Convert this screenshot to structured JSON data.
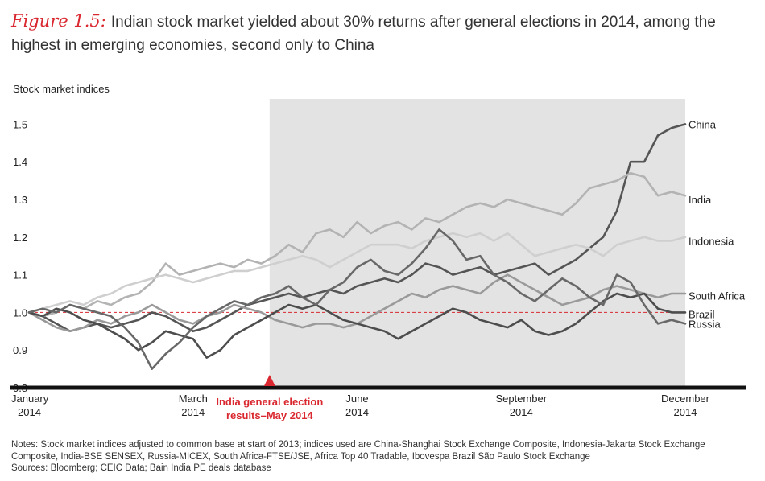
{
  "figure": {
    "label": "Figure 1.5:",
    "title": "Indian stock market yielded about 30% returns after general elections in 2014, among the highest in emerging economies, second only to China"
  },
  "notes": {
    "line1": "Notes: Stock market indices adjusted to common base at start of 2013; indices used are China-Shanghai Stock Exchange Composite, Indonesia-Jakarta Stock Exchange",
    "line2": "Composite, India-BSE SENSEX, Russia-MICEX, South Africa-FTSE/JSE, Africa Top 40 Tradable, Ibovespa Brazil São Paulo Stock Exchange",
    "line3": "Sources: Bloomberg; CEIC Data; Bain India PE deals database"
  },
  "colors": {
    "china": "#555555",
    "india": "#b3b3b3",
    "indonesia": "#cfcfcf",
    "south_africa": "#9a9a9a",
    "brazil": "#4d4d4d",
    "russia": "#686868",
    "shade": "#e3e3e3",
    "accent": "#d9282f",
    "axis": "#111111"
  },
  "chart_data": {
    "type": "line",
    "ylabel": "Stock market indices",
    "ylim": [
      0.8,
      1.55
    ],
    "yticks": [
      "0.8",
      "0.9",
      "1.0",
      "1.1",
      "1.2",
      "1.3",
      "1.4",
      "1.5"
    ],
    "xlim": [
      0,
      48
    ],
    "xticks": [
      {
        "pos": 0,
        "line1": "January",
        "line2": "2014"
      },
      {
        "pos": 12,
        "line1": "March",
        "line2": "2014"
      },
      {
        "pos": 24,
        "line1": "June",
        "line2": "2014"
      },
      {
        "pos": 36,
        "line1": "September",
        "line2": "2014"
      },
      {
        "pos": 48,
        "line1": "December",
        "line2": "2014"
      }
    ],
    "shaded_region": [
      17.6,
      48
    ],
    "baseline": 1.0,
    "annotation": {
      "pos": 17.6,
      "line1": "India general election",
      "line2": "results–May 2014"
    },
    "series": [
      {
        "name": "China",
        "key": "china",
        "width": 2.6,
        "values": [
          1.0,
          0.99,
          0.97,
          0.95,
          0.96,
          0.97,
          0.96,
          0.97,
          0.98,
          1.0,
          0.99,
          0.97,
          0.95,
          0.96,
          0.98,
          1.0,
          1.02,
          1.03,
          1.04,
          1.05,
          1.04,
          1.05,
          1.06,
          1.05,
          1.07,
          1.08,
          1.09,
          1.08,
          1.1,
          1.13,
          1.12,
          1.1,
          1.11,
          1.12,
          1.1,
          1.11,
          1.12,
          1.13,
          1.1,
          1.12,
          1.14,
          1.17,
          1.2,
          1.27,
          1.4,
          1.4,
          1.47,
          1.49,
          1.5
        ]
      },
      {
        "name": "India",
        "key": "india",
        "width": 2.6,
        "values": [
          1.0,
          0.99,
          1.0,
          1.02,
          1.01,
          1.03,
          1.02,
          1.04,
          1.05,
          1.08,
          1.13,
          1.1,
          1.11,
          1.12,
          1.13,
          1.12,
          1.14,
          1.13,
          1.15,
          1.18,
          1.16,
          1.21,
          1.22,
          1.2,
          1.24,
          1.21,
          1.23,
          1.24,
          1.22,
          1.25,
          1.24,
          1.26,
          1.28,
          1.29,
          1.28,
          1.3,
          1.29,
          1.28,
          1.27,
          1.26,
          1.29,
          1.33,
          1.34,
          1.35,
          1.37,
          1.36,
          1.31,
          1.32,
          1.31
        ]
      },
      {
        "name": "Indonesia",
        "key": "indonesia",
        "width": 2.6,
        "values": [
          1.0,
          1.01,
          1.02,
          1.03,
          1.02,
          1.04,
          1.05,
          1.07,
          1.08,
          1.09,
          1.1,
          1.09,
          1.08,
          1.09,
          1.1,
          1.11,
          1.11,
          1.12,
          1.13,
          1.14,
          1.15,
          1.14,
          1.12,
          1.14,
          1.16,
          1.18,
          1.18,
          1.18,
          1.17,
          1.19,
          1.2,
          1.21,
          1.2,
          1.21,
          1.19,
          1.21,
          1.18,
          1.15,
          1.16,
          1.17,
          1.18,
          1.17,
          1.15,
          1.18,
          1.19,
          1.2,
          1.19,
          1.19,
          1.2
        ]
      },
      {
        "name": "South Africa",
        "key": "south_africa",
        "width": 2.6,
        "values": [
          1.0,
          0.98,
          0.96,
          0.95,
          0.96,
          0.98,
          0.97,
          0.99,
          1.0,
          1.02,
          1.0,
          0.98,
          0.97,
          0.99,
          1.0,
          1.02,
          1.01,
          1.0,
          0.98,
          0.97,
          0.96,
          0.97,
          0.97,
          0.96,
          0.97,
          0.99,
          1.01,
          1.03,
          1.05,
          1.04,
          1.06,
          1.07,
          1.06,
          1.05,
          1.08,
          1.1,
          1.08,
          1.06,
          1.04,
          1.02,
          1.03,
          1.04,
          1.06,
          1.07,
          1.06,
          1.05,
          1.04,
          1.05,
          1.05
        ]
      },
      {
        "name": "Brazil",
        "key": "brazil",
        "width": 2.6,
        "values": [
          1.0,
          0.99,
          1.01,
          1.0,
          0.98,
          0.97,
          0.95,
          0.93,
          0.9,
          0.92,
          0.95,
          0.94,
          0.93,
          0.88,
          0.9,
          0.94,
          0.96,
          0.98,
          1.0,
          1.02,
          1.01,
          1.02,
          1.0,
          0.98,
          0.97,
          0.96,
          0.95,
          0.93,
          0.95,
          0.97,
          0.99,
          1.01,
          1.0,
          0.98,
          0.97,
          0.96,
          0.98,
          0.95,
          0.94,
          0.95,
          0.97,
          1.0,
          1.03,
          1.05,
          1.04,
          1.05,
          1.01,
          1.0,
          1.0
        ]
      },
      {
        "name": "Russia",
        "key": "russia",
        "width": 2.6,
        "values": [
          1.0,
          1.01,
          1.0,
          1.02,
          1.01,
          1.0,
          0.99,
          0.96,
          0.92,
          0.85,
          0.89,
          0.92,
          0.96,
          0.99,
          1.01,
          1.03,
          1.02,
          1.04,
          1.05,
          1.07,
          1.04,
          1.02,
          1.06,
          1.08,
          1.12,
          1.14,
          1.11,
          1.1,
          1.13,
          1.17,
          1.22,
          1.19,
          1.14,
          1.15,
          1.1,
          1.08,
          1.05,
          1.03,
          1.06,
          1.09,
          1.07,
          1.04,
          1.02,
          1.1,
          1.08,
          1.02,
          0.97,
          0.98,
          0.97
        ]
      }
    ]
  }
}
